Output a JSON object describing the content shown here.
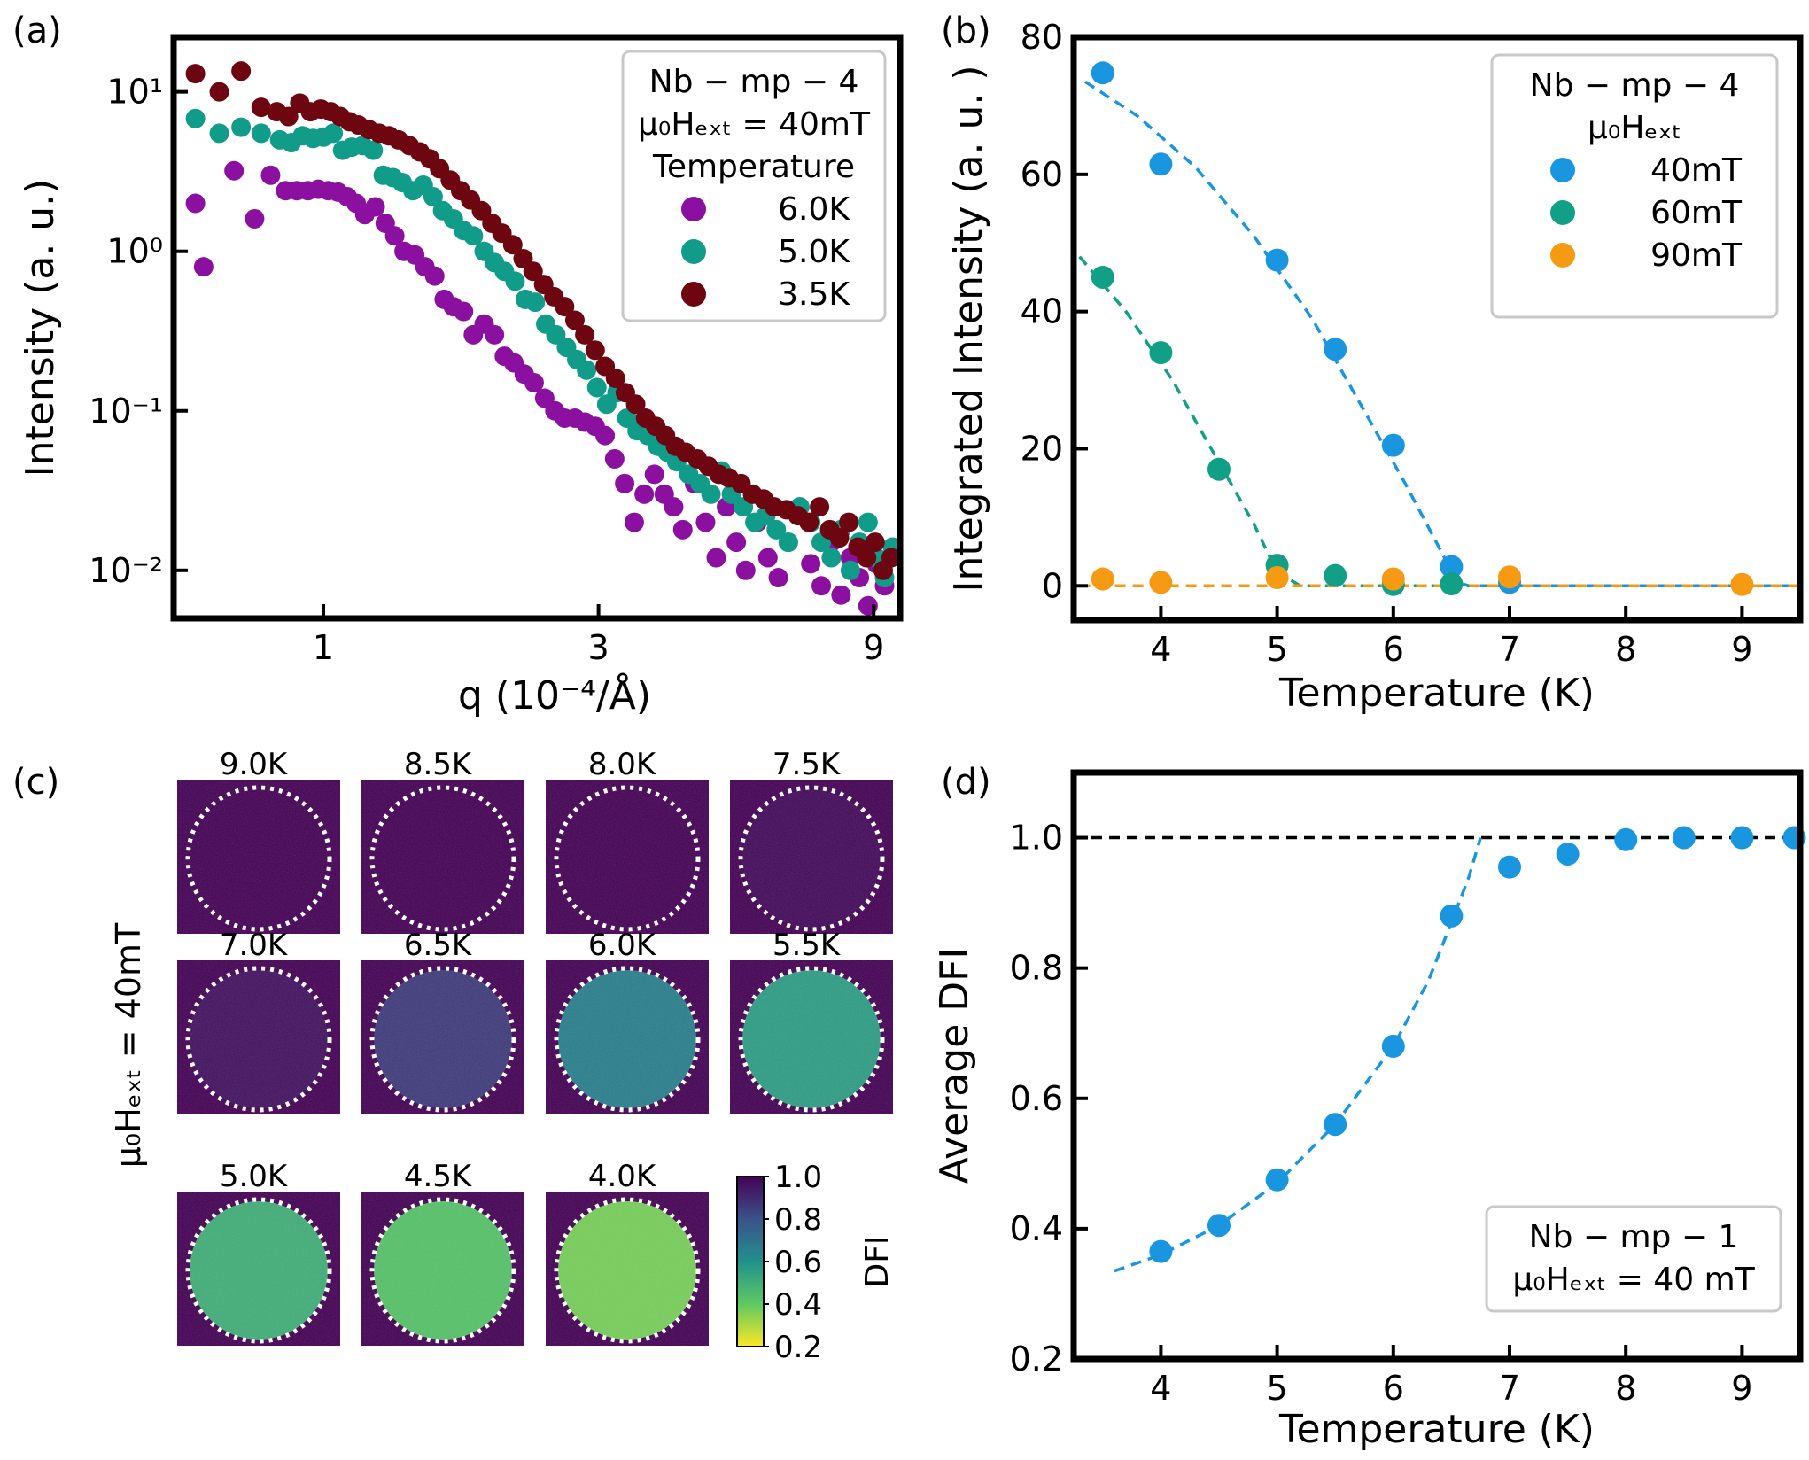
{
  "chart_data": [
    {
      "panel": "(a)",
      "type": "scatter",
      "xscale": "log",
      "yscale": "log",
      "xlabel": "q (10⁻⁴/Å)",
      "ylabel": "Intensity (a. u.)",
      "xlim": [
        0.55,
        10
      ],
      "ylim": [
        0.005,
        22
      ],
      "xticks": [
        1,
        3,
        9
      ],
      "xtick_labels": [
        "1",
        "3",
        "9"
      ],
      "yticks": [
        0.01,
        0.1,
        1,
        10
      ],
      "ytick_labels": [
        "10⁻²",
        "10⁻¹",
        "10⁰",
        "10¹"
      ],
      "legend": {
        "position": "top-right",
        "title_lines": [
          "Nb − mp − 4",
          "μ₀Hₑₓₜ = 40mT",
          "Temperature"
        ]
      },
      "series": [
        {
          "name": "6.0K",
          "color": "#8b10a0",
          "x": [
            0.6,
            0.62,
            0.7,
            0.76,
            0.81,
            0.86,
            0.9,
            0.94,
            0.98,
            1.02,
            1.06,
            1.1,
            1.14,
            1.18,
            1.23,
            1.28,
            1.33,
            1.38,
            1.44,
            1.5,
            1.56,
            1.62,
            1.68,
            1.75,
            1.82,
            1.9,
            1.98,
            2.06,
            2.14,
            2.23,
            2.32,
            2.42,
            2.52,
            2.62,
            2.73,
            2.84,
            2.96,
            3.08,
            3.2,
            3.33,
            3.46,
            3.6,
            3.75,
            3.9,
            4.05,
            4.2,
            4.4,
            4.6,
            4.8,
            5.0,
            5.2,
            5.4,
            5.65,
            5.9,
            6.15,
            6.4,
            6.7,
            7.0,
            7.3,
            7.6,
            7.9,
            8.2,
            8.5,
            8.8,
            9.1,
            9.4
          ],
          "y": [
            2.0,
            0.8,
            3.2,
            1.6,
            3.0,
            2.4,
            2.4,
            2.4,
            2.45,
            2.4,
            2.35,
            2.2,
            2.0,
            1.7,
            1.9,
            1.5,
            1.25,
            1.0,
            0.95,
            0.8,
            0.7,
            0.5,
            0.45,
            0.42,
            0.3,
            0.35,
            0.3,
            0.22,
            0.2,
            0.17,
            0.15,
            0.12,
            0.1,
            0.09,
            0.09,
            0.085,
            0.08,
            0.07,
            0.05,
            0.035,
            0.02,
            0.03,
            0.04,
            0.03,
            0.025,
            0.018,
            0.035,
            0.02,
            0.012,
            0.025,
            0.015,
            0.01,
            0.02,
            0.012,
            0.009,
            0.015,
            0.025,
            0.011,
            0.008,
            0.015,
            0.007,
            0.012,
            0.009,
            0.006,
            0.011,
            0.008
          ]
        },
        {
          "name": "5.0K",
          "color": "#119c8a",
          "x": [
            0.6,
            0.66,
            0.72,
            0.78,
            0.84,
            0.88,
            0.92,
            0.96,
            1.0,
            1.04,
            1.08,
            1.12,
            1.17,
            1.22,
            1.27,
            1.32,
            1.37,
            1.43,
            1.49,
            1.55,
            1.61,
            1.68,
            1.75,
            1.82,
            1.9,
            1.98,
            2.06,
            2.15,
            2.24,
            2.33,
            2.43,
            2.53,
            2.64,
            2.75,
            2.86,
            2.98,
            3.1,
            3.23,
            3.36,
            3.5,
            3.65,
            3.8,
            3.95,
            4.1,
            4.3,
            4.5,
            4.7,
            4.9,
            5.1,
            5.35,
            5.6,
            5.85,
            6.1,
            6.4,
            6.7,
            7.0,
            7.3,
            7.6,
            7.9,
            8.2,
            8.5,
            8.8,
            9.1,
            9.4,
            9.7
          ],
          "y": [
            6.8,
            5.5,
            6.0,
            5.5,
            5.0,
            4.8,
            5.3,
            5.1,
            5.2,
            5.5,
            4.3,
            4.5,
            4.6,
            4.3,
            3.0,
            2.9,
            2.7,
            2.4,
            2.6,
            2.2,
            1.8,
            1.6,
            1.35,
            1.25,
            1.0,
            0.85,
            0.75,
            0.65,
            0.5,
            0.48,
            0.35,
            0.3,
            0.25,
            0.21,
            0.18,
            0.14,
            0.11,
            0.13,
            0.09,
            0.075,
            0.07,
            0.06,
            0.055,
            0.048,
            0.04,
            0.035,
            0.03,
            0.042,
            0.03,
            0.025,
            0.02,
            0.022,
            0.018,
            0.015,
            0.025,
            0.02,
            0.015,
            0.012,
            0.018,
            0.01,
            0.015,
            0.02,
            0.012,
            0.009,
            0.014
          ]
        },
        {
          "name": "3.5K",
          "color": "#6e0612",
          "x": [
            0.6,
            0.66,
            0.72,
            0.78,
            0.83,
            0.87,
            0.91,
            0.95,
            0.99,
            1.03,
            1.07,
            1.11,
            1.15,
            1.2,
            1.25,
            1.3,
            1.35,
            1.41,
            1.47,
            1.53,
            1.59,
            1.66,
            1.73,
            1.8,
            1.88,
            1.96,
            2.04,
            2.13,
            2.22,
            2.31,
            2.41,
            2.51,
            2.62,
            2.73,
            2.84,
            2.96,
            3.08,
            3.21,
            3.34,
            3.48,
            3.62,
            3.77,
            3.92,
            4.08,
            4.25,
            4.45,
            4.65,
            4.85,
            5.05,
            5.3,
            5.55,
            5.8,
            6.05,
            6.35,
            6.65,
            6.95,
            7.25,
            7.55,
            7.85,
            8.15,
            8.45,
            8.75,
            9.05,
            9.35,
            9.65
          ],
          "y": [
            13.0,
            10.0,
            13.5,
            8.0,
            7.5,
            7.0,
            8.5,
            7.5,
            7.8,
            7.5,
            7.0,
            6.5,
            6.2,
            5.8,
            5.5,
            5.3,
            5.0,
            4.6,
            4.2,
            3.8,
            3.3,
            2.8,
            2.4,
            2.1,
            1.8,
            1.5,
            1.3,
            1.1,
            0.9,
            0.75,
            0.62,
            0.52,
            0.45,
            0.37,
            0.3,
            0.24,
            0.19,
            0.16,
            0.13,
            0.11,
            0.09,
            0.08,
            0.07,
            0.06,
            0.055,
            0.05,
            0.045,
            0.04,
            0.038,
            0.035,
            0.03,
            0.028,
            0.025,
            0.024,
            0.022,
            0.02,
            0.025,
            0.018,
            0.016,
            0.02,
            0.014,
            0.012,
            0.015,
            0.01,
            0.012
          ]
        }
      ]
    },
    {
      "panel": "(b)",
      "type": "scatter",
      "xlabel": "Temperature (K)",
      "ylabel": "Integrated Intensity (a. u. )",
      "xlim": [
        3.25,
        9.5
      ],
      "ylim": [
        -5,
        80
      ],
      "xticks": [
        4,
        5,
        6,
        7,
        8,
        9
      ],
      "xtick_labels": [
        "4",
        "5",
        "6",
        "7",
        "8",
        "9"
      ],
      "yticks": [
        0,
        20,
        40,
        60,
        80
      ],
      "ytick_labels": [
        "0",
        "20",
        "40",
        "60",
        "80"
      ],
      "legend": {
        "position": "top-right",
        "title_lines": [
          "Nb − mp − 4",
          "μ₀Hₑₓₜ"
        ]
      },
      "series": [
        {
          "name": "40mT",
          "color": "#1a96e0",
          "x": [
            3.5,
            4.0,
            5.0,
            5.5,
            6.0,
            6.5,
            7.0
          ],
          "y": [
            74.8,
            61.5,
            47.5,
            34.5,
            20.5,
            2.8,
            0.5
          ]
        },
        {
          "name": "60mT",
          "color": "#11a086",
          "x": [
            3.5,
            4.0,
            4.5,
            5.0,
            5.5,
            6.0,
            6.5
          ],
          "y": [
            45.0,
            34.0,
            17.0,
            3.0,
            1.5,
            0.2,
            0.3
          ]
        },
        {
          "name": "90mT",
          "color": "#f79a13",
          "x": [
            3.5,
            4.0,
            5.0,
            6.0,
            7.0,
            9.0
          ],
          "y": [
            1.0,
            0.5,
            1.2,
            1.0,
            1.3,
            0.2
          ]
        }
      ],
      "fits": [
        {
          "series": "40mT",
          "style": "dashed",
          "x": [
            3.35,
            3.8,
            4.3,
            4.8,
            5.3,
            5.8,
            6.1,
            6.35,
            6.55,
            6.65,
            7.0,
            9.5
          ],
          "y": [
            73.5,
            68.5,
            61.0,
            51.0,
            39.0,
            24.0,
            15.0,
            7.0,
            0.5,
            0,
            0,
            0
          ]
        },
        {
          "series": "60mT",
          "style": "dashed",
          "x": [
            3.3,
            3.7,
            4.1,
            4.5,
            4.8,
            5.0,
            5.2,
            7.0
          ],
          "y": [
            48.0,
            40.0,
            30.0,
            18.0,
            9.0,
            2.0,
            0,
            0
          ]
        },
        {
          "series": "90mT",
          "style": "dashed",
          "x": [
            3.3,
            9.5
          ],
          "y": [
            0,
            0
          ]
        }
      ]
    },
    {
      "panel": "(c)",
      "type": "heatmap",
      "ylabel": "μ₀Hₑₓₜ = 40mT",
      "colorbar": {
        "label": "DFI",
        "min": 0.2,
        "max": 1.0,
        "ticks": [
          "1.0",
          "0.8",
          "0.6",
          "0.4",
          "0.2"
        ]
      },
      "images": [
        {
          "label": "9.0K",
          "mean_dfi": 1.0
        },
        {
          "label": "8.5K",
          "mean_dfi": 1.0
        },
        {
          "label": "8.0K",
          "mean_dfi": 1.0
        },
        {
          "label": "7.5K",
          "mean_dfi": 0.98
        },
        {
          "label": "7.0K",
          "mean_dfi": 0.96
        },
        {
          "label": "6.5K",
          "mean_dfi": 0.86
        },
        {
          "label": "6.0K",
          "mean_dfi": 0.66
        },
        {
          "label": "5.5K",
          "mean_dfi": 0.56
        },
        {
          "label": "5.0K",
          "mean_dfi": 0.5
        },
        {
          "label": "4.5K",
          "mean_dfi": 0.43
        },
        {
          "label": "4.0K",
          "mean_dfi": 0.37
        }
      ]
    },
    {
      "panel": "(d)",
      "type": "scatter",
      "xlabel": "Temperature (K)",
      "ylabel": "Average DFI",
      "xlim": [
        3.25,
        9.5
      ],
      "ylim": [
        0.2,
        1.1
      ],
      "xticks": [
        4,
        5,
        6,
        7,
        8,
        9
      ],
      "xtick_labels": [
        "4",
        "5",
        "6",
        "7",
        "8",
        "9"
      ],
      "yticks": [
        0.2,
        0.4,
        0.6,
        0.8,
        1.0
      ],
      "ytick_labels": [
        "0.2",
        "0.4",
        "0.6",
        "0.8",
        "1.0"
      ],
      "legend": {
        "position": "bottom-right",
        "title_lines": [
          "Nb − mp − 1",
          "μ₀Hₑₓₜ = 40 mT"
        ]
      },
      "reference_line": {
        "y": 1.0,
        "style": "dashed",
        "color": "#000000"
      },
      "series": [
        {
          "name": "Average DFI",
          "color": "#1a96e0",
          "x": [
            4.0,
            4.5,
            5.0,
            5.5,
            6.0,
            6.5,
            7.0,
            7.5,
            8.0,
            8.5,
            9.0,
            9.45
          ],
          "y": [
            0.365,
            0.405,
            0.475,
            0.56,
            0.68,
            0.88,
            0.955,
            0.975,
            0.997,
            1.0,
            1.0,
            1.0
          ]
        }
      ],
      "fits": [
        {
          "style": "dashed",
          "x": [
            3.6,
            4.0,
            4.5,
            5.0,
            5.5,
            6.0,
            6.3,
            6.5,
            6.65,
            6.75
          ],
          "y": [
            0.335,
            0.36,
            0.405,
            0.47,
            0.56,
            0.68,
            0.78,
            0.87,
            0.94,
            1.0
          ]
        }
      ]
    }
  ],
  "panel_labels": {
    "a": "(a)",
    "b": "(b)",
    "c": "(c)",
    "d": "(d)"
  },
  "colors": {
    "frame": "#000000",
    "dfi_low": "#fde725",
    "dfi_high": "#440154"
  }
}
